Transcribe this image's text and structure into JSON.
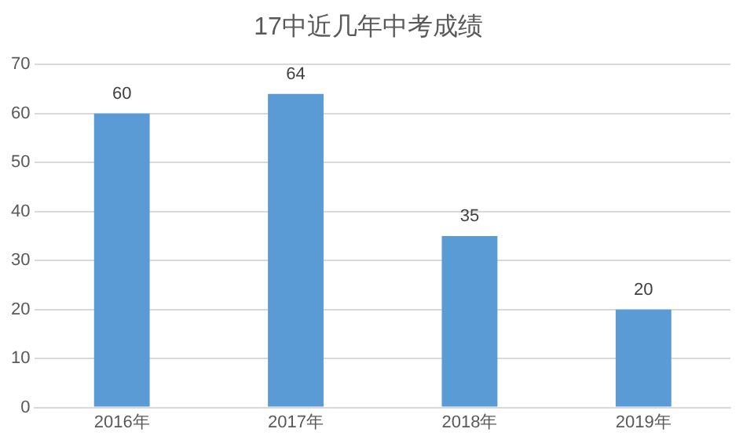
{
  "chart_data": {
    "type": "bar",
    "title": "17中近几年中考成绩",
    "categories": [
      "2016年",
      "2017年",
      "2018年",
      "2019年"
    ],
    "values": [
      60,
      64,
      35,
      20
    ],
    "color": "#5b9bd5",
    "ylim": [
      0,
      70
    ],
    "yticks": [
      0,
      10,
      20,
      30,
      40,
      50,
      60,
      70
    ],
    "grid": "y",
    "data_labels": true,
    "legend": false
  }
}
